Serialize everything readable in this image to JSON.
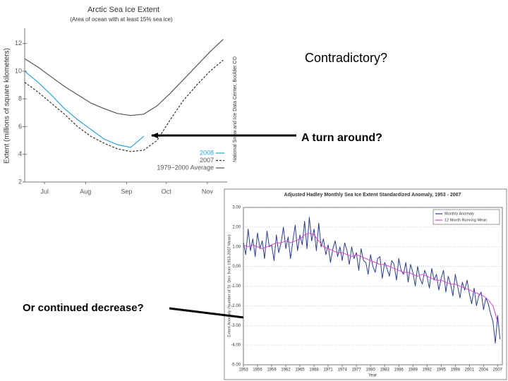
{
  "callouts": [
    "Contradictory?",
    "A turn around?",
    "Or continued decrease?"
  ],
  "chart_data": [
    {
      "type": "line",
      "title": "Arctic Sea Ice Extent",
      "subtitle": "(Area of ocean with at least 15% sea ice)",
      "ylabel": "Extent (millions of square kilometers)",
      "source": "National Snow and Ice Data Center, Boulder CO",
      "x": [
        182,
        192,
        202,
        212,
        222,
        232,
        242,
        252,
        262,
        272,
        282,
        292,
        302,
        312,
        322,
        332
      ],
      "xlim": [
        182,
        335
      ],
      "ylim": [
        2,
        13
      ],
      "xticks": [
        {
          "value": 197,
          "label": "Jul"
        },
        {
          "value": 228,
          "label": "Aug"
        },
        {
          "value": 259,
          "label": "Sep"
        },
        {
          "value": 289,
          "label": "Oct"
        },
        {
          "value": 320,
          "label": "Nov"
        }
      ],
      "yticks": [
        2,
        4,
        6,
        8,
        10,
        12
      ],
      "grid": false,
      "legend": "lower right",
      "series": [
        {
          "name": "2008",
          "color": "#29a3d6",
          "dash": false,
          "values": [
            10.0,
            9.2,
            8.3,
            7.3,
            6.5,
            5.8,
            5.1,
            4.7,
            4.5,
            5.3,
            null,
            null,
            null,
            null,
            null,
            null
          ]
        },
        {
          "name": "2007",
          "color": "#333333",
          "dash": true,
          "values": [
            9.2,
            8.5,
            7.7,
            6.9,
            6.0,
            5.3,
            4.8,
            4.4,
            4.2,
            4.3,
            5.0,
            6.5,
            7.9,
            9.0,
            10.0,
            10.8
          ]
        },
        {
          "name": "1979−2000 Average",
          "color": "#555555",
          "dash": false,
          "values": [
            10.9,
            10.3,
            9.6,
            8.9,
            8.3,
            7.7,
            7.3,
            6.95,
            6.8,
            6.9,
            7.5,
            8.4,
            9.4,
            10.4,
            11.4,
            12.3
          ]
        }
      ]
    },
    {
      "type": "line",
      "title": "Adjusted Hadley Monthly Sea Ice Extent Standardized Anomaly, 1953 - 2007",
      "ylabel": "Extent Anomaly (Number of St. Dev. from 1953-2007 Mean)",
      "xlabel": "Year",
      "xlim": [
        1953,
        2008
      ],
      "ylim": [
        -5,
        3
      ],
      "xticks": [
        1953,
        1956,
        1959,
        1962,
        1965,
        1968,
        1971,
        1974,
        1977,
        1980,
        1983,
        1986,
        1989,
        1992,
        1995,
        1998,
        2001,
        2004,
        2007
      ],
      "yticks": [
        {
          "value": 3,
          "label": "3.00"
        },
        {
          "value": 2,
          "label": "2.00"
        },
        {
          "value": 1,
          "label": "1.00"
        },
        {
          "value": 0,
          "label": "0.00"
        },
        {
          "value": -1,
          "label": "-1.00"
        },
        {
          "value": -2,
          "label": "-2.00"
        },
        {
          "value": -3,
          "label": "-3.00"
        },
        {
          "value": -4,
          "label": "-4.00"
        },
        {
          "value": -5,
          "label": "-5.00"
        }
      ],
      "grid": true,
      "legend": "upper right",
      "series": [
        {
          "name": "Monthly Anomaly",
          "color": "#2a3d8f",
          "dash": false,
          "x": [
            1953,
            1953.5,
            1954,
            1954.5,
            1955,
            1955.5,
            1956,
            1956.5,
            1957,
            1957.5,
            1958,
            1958.5,
            1959,
            1959.5,
            1960,
            1960.5,
            1961,
            1961.5,
            1962,
            1962.5,
            1963,
            1963.5,
            1964,
            1964.5,
            1965,
            1965.5,
            1966,
            1966.5,
            1967,
            1967.5,
            1968,
            1968.5,
            1969,
            1969.5,
            1970,
            1970.5,
            1971,
            1971.5,
            1972,
            1972.5,
            1973,
            1973.5,
            1974,
            1974.5,
            1975,
            1975.5,
            1976,
            1976.5,
            1977,
            1977.5,
            1978,
            1978.5,
            1979,
            1979.5,
            1980,
            1980.5,
            1981,
            1981.5,
            1982,
            1982.5,
            1983,
            1983.5,
            1984,
            1984.5,
            1985,
            1985.5,
            1986,
            1986.5,
            1987,
            1987.5,
            1988,
            1988.5,
            1989,
            1989.5,
            1990,
            1990.5,
            1991,
            1991.5,
            1992,
            1992.5,
            1993,
            1993.5,
            1994,
            1994.5,
            1995,
            1995.5,
            1996,
            1996.5,
            1997,
            1997.5,
            1998,
            1998.5,
            1999,
            1999.5,
            2000,
            2000.5,
            2001,
            2001.5,
            2002,
            2002.5,
            2003,
            2003.5,
            2004,
            2004.5,
            2005,
            2005.5,
            2006,
            2006.5,
            2007,
            2007.5
          ],
          "values": [
            1.2,
            0.6,
            1.9,
            0.8,
            1.4,
            0.5,
            1.7,
            0.9,
            1.3,
            0.4,
            1.8,
            1.0,
            1.1,
            0.3,
            1.6,
            0.7,
            1.2,
            2.0,
            0.9,
            1.5,
            0.4,
            1.3,
            2.1,
            0.8,
            1.6,
            1.1,
            2.3,
            0.9,
            2.5,
            1.3,
            1.9,
            0.8,
            2.2,
            1.0,
            1.4,
            0.6,
            1.1,
            0.2,
            0.9,
            1.3,
            0.5,
            1.0,
            0.3,
            1.2,
            0.8,
            0.1,
            1.0,
            0.4,
            0.7,
            -0.2,
            0.9,
            0.3,
            0.2,
            -0.4,
            0.6,
            0.0,
            -0.3,
            0.4,
            0.5,
            -0.6,
            0.2,
            -0.1,
            -0.5,
            0.3,
            0.1,
            -0.7,
            0.4,
            -0.2,
            -0.4,
            0.2,
            -0.8,
            0.1,
            -0.3,
            -1.0,
            0.0,
            -0.6,
            -0.9,
            -0.2,
            -0.5,
            -1.1,
            -0.1,
            -0.7,
            -0.4,
            -1.2,
            -0.6,
            -0.2,
            -1.3,
            -0.5,
            -0.9,
            -1.5,
            -0.4,
            -1.0,
            -1.6,
            -0.8,
            -1.2,
            -0.7,
            -1.4,
            -1.9,
            -1.1,
            -2.0,
            -1.5,
            -1.3,
            -2.2,
            -1.6,
            -1.9,
            -2.4,
            -2.8,
            -3.9,
            -2.5,
            -3.7
          ]
        },
        {
          "name": "12 Month Running Mean",
          "color": "#e040d0",
          "dash": false,
          "x": [
            1953,
            1954,
            1955,
            1956,
            1957,
            1958,
            1959,
            1960,
            1961,
            1962,
            1963,
            1964,
            1965,
            1966,
            1967,
            1968,
            1969,
            1970,
            1971,
            1972,
            1973,
            1974,
            1975,
            1976,
            1977,
            1978,
            1979,
            1980,
            1981,
            1982,
            1983,
            1984,
            1985,
            1986,
            1987,
            1988,
            1989,
            1990,
            1991,
            1992,
            1993,
            1994,
            1995,
            1996,
            1997,
            1998,
            1999,
            2000,
            2001,
            2002,
            2003,
            2004,
            2005,
            2006,
            2007
          ],
          "values": [
            1.1,
            1.0,
            1.1,
            1.0,
            0.9,
            1.0,
            1.1,
            1.2,
            1.2,
            1.3,
            1.2,
            1.3,
            1.4,
            1.6,
            1.7,
            1.6,
            1.3,
            1.0,
            0.9,
            0.8,
            0.7,
            0.7,
            0.6,
            0.5,
            0.6,
            0.5,
            0.4,
            0.3,
            0.2,
            0.1,
            0.1,
            0.0,
            -0.1,
            -0.2,
            -0.3,
            -0.3,
            -0.4,
            -0.5,
            -0.4,
            -0.5,
            -0.6,
            -0.7,
            -0.7,
            -0.8,
            -0.9,
            -0.9,
            -1.0,
            -1.1,
            -1.2,
            -1.3,
            -1.4,
            -1.5,
            -1.7,
            -2.0,
            -2.8
          ]
        }
      ]
    }
  ]
}
